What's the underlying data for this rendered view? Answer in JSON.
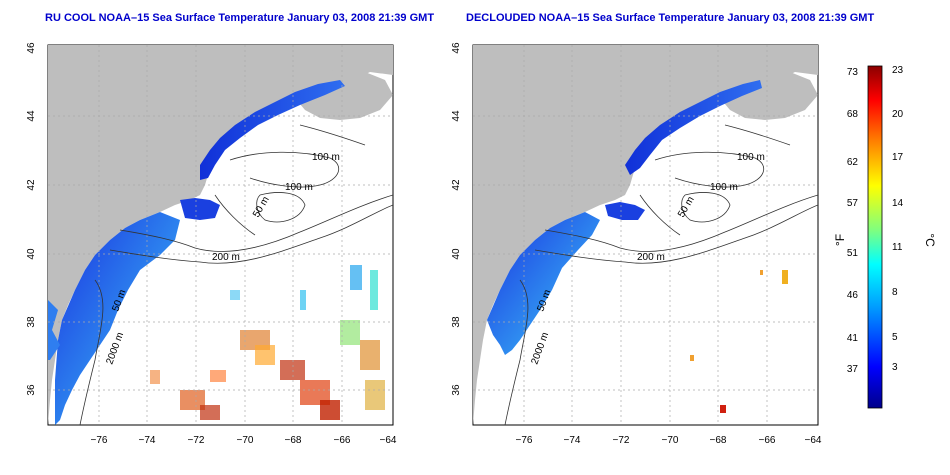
{
  "panels": [
    {
      "title": "RU COOL NOAA–15 Sea Surface Temperature January 03, 2008 21:39 GMT",
      "x_ticks": [
        "−76",
        "−74",
        "−72",
        "−70",
        "−68",
        "−66",
        "−64"
      ],
      "y_ticks": [
        "36",
        "38",
        "40",
        "42",
        "44",
        "46"
      ],
      "contour_labels": [
        "100 m",
        "100 m",
        "50 m",
        "200 m",
        "50 m",
        "2000 m"
      ]
    },
    {
      "title": "DECLOUDED NOAA–15 Sea Surface Temperature January 03, 2008 21:39 GMT",
      "x_ticks": [
        "−76",
        "−74",
        "−72",
        "−70",
        "−68",
        "−66",
        "−64"
      ],
      "y_ticks": [
        "36",
        "38",
        "40",
        "42",
        "44",
        "46"
      ],
      "contour_labels": [
        "100 m",
        "100 m",
        "50 m",
        "200 m",
        "50 m",
        "2000 m"
      ]
    }
  ],
  "colorbar": {
    "unit_f": "°F",
    "unit_c": "°C",
    "f_ticks": [
      "73",
      "68",
      "62",
      "57",
      "51",
      "46",
      "41",
      "37"
    ],
    "c_ticks": [
      "23",
      "20",
      "17",
      "14",
      "11",
      "8",
      "5",
      "3"
    ],
    "colors": [
      "#00008b",
      "#0000ff",
      "#00a0ff",
      "#00ffff",
      "#7fff7f",
      "#ffff00",
      "#ff8000",
      "#ff0000",
      "#8b0000"
    ]
  },
  "colors": {
    "land": "#bebebe",
    "title": "#0000cc",
    "contour": "#333333",
    "grid": "#aaaaaa"
  }
}
